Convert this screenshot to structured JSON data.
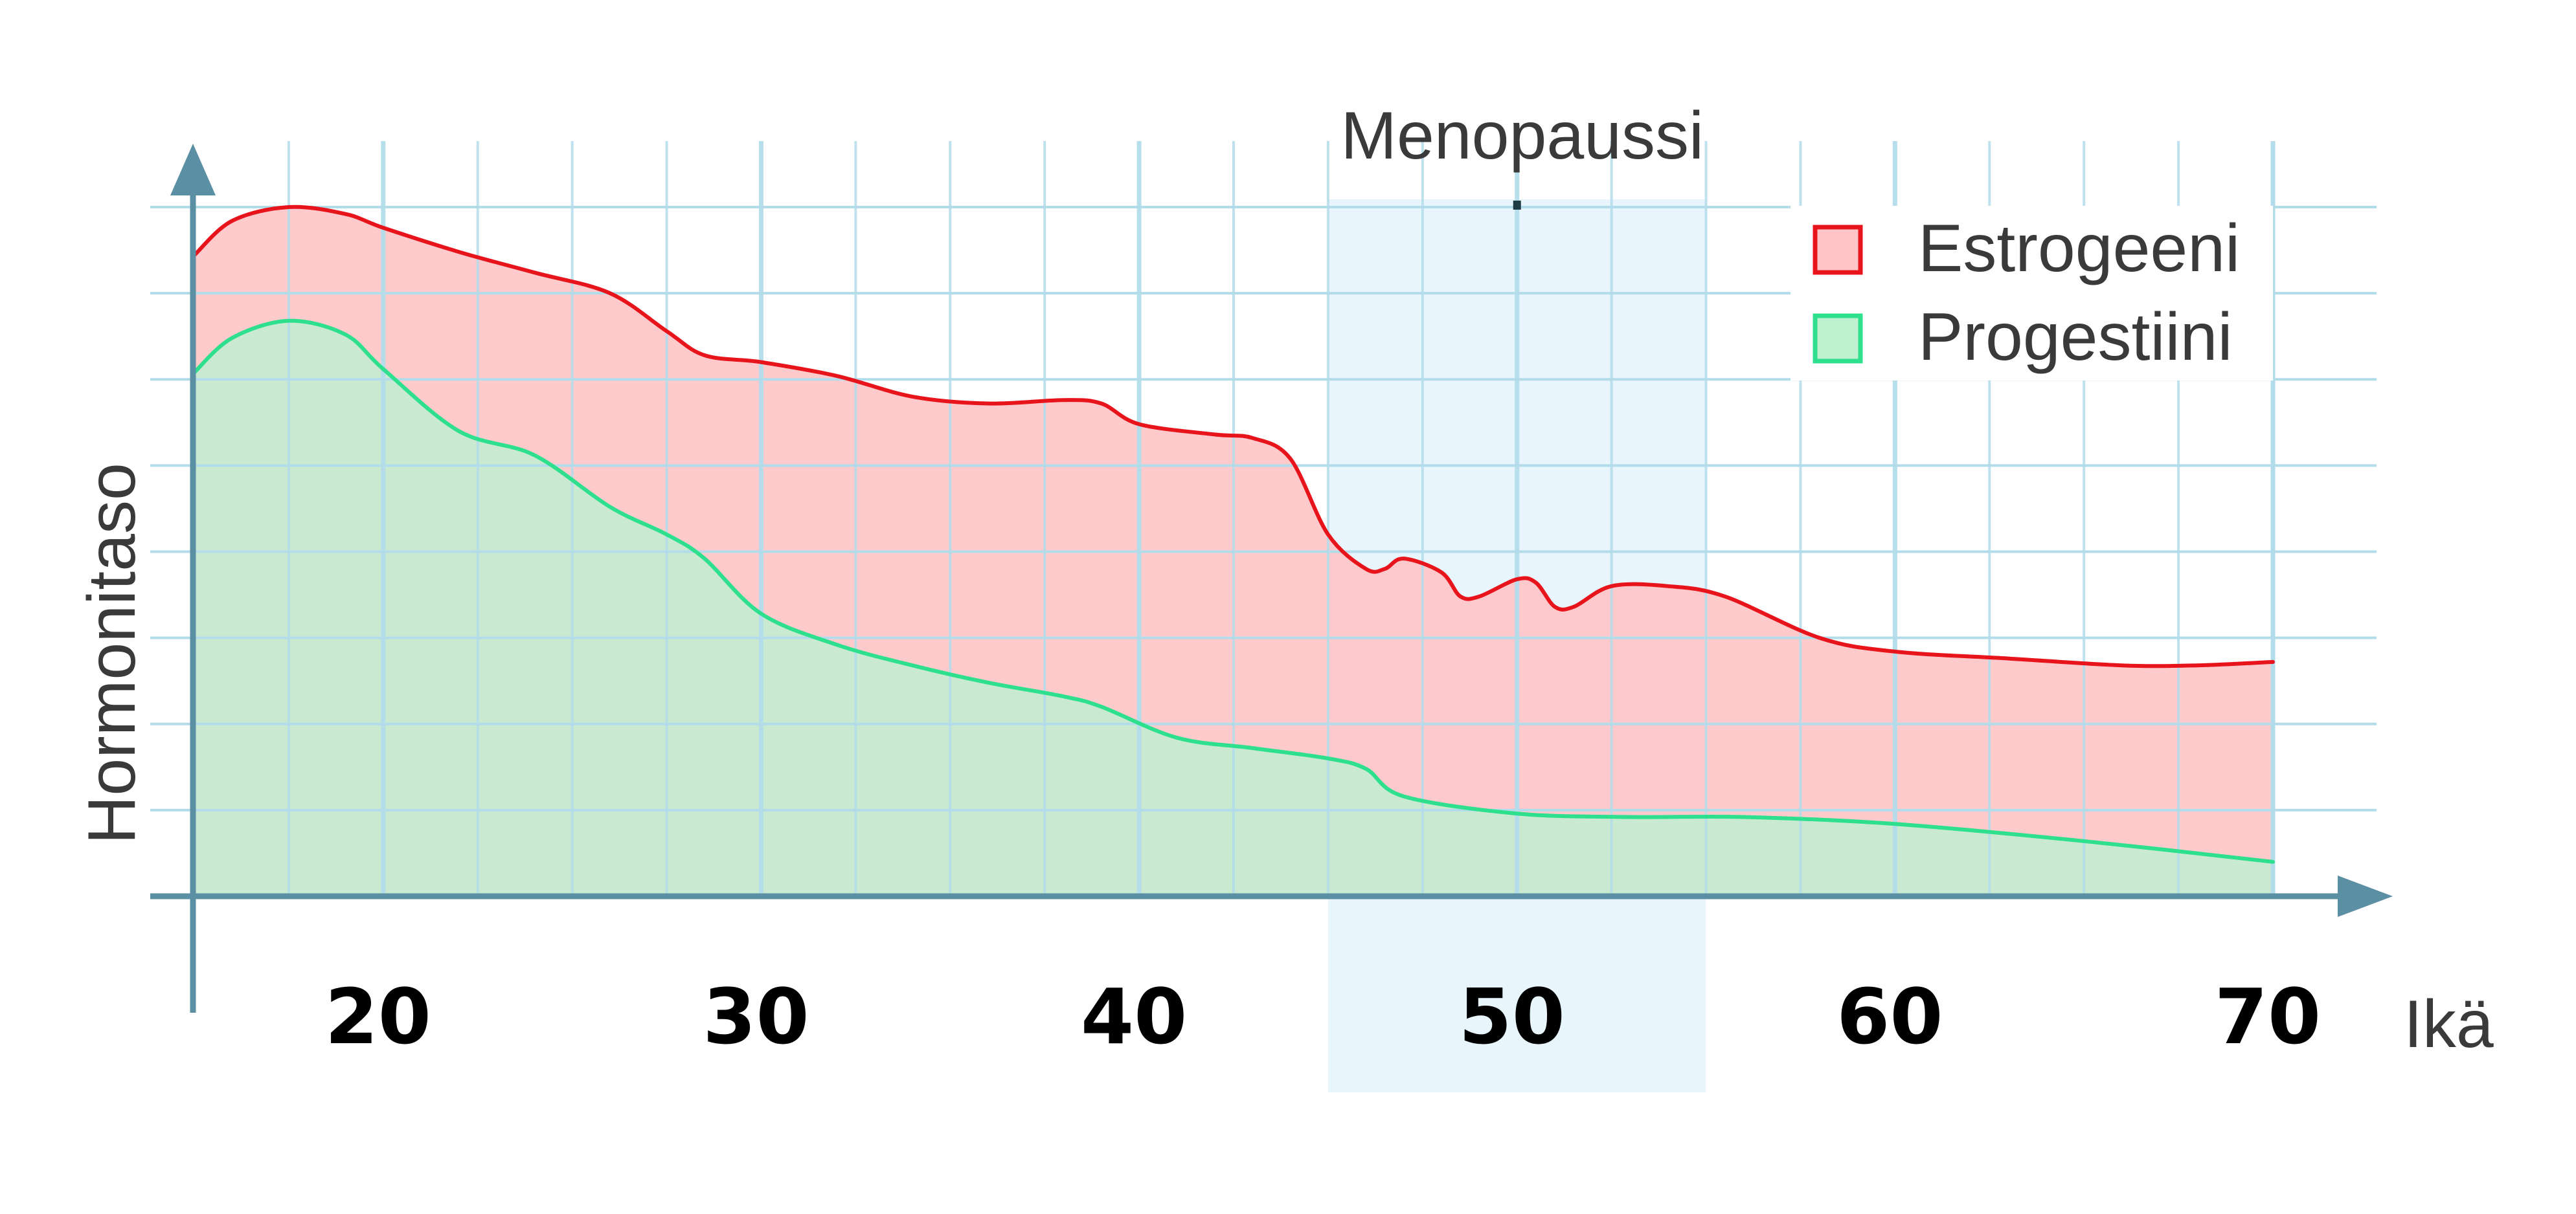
{
  "chart_data": {
    "type": "area",
    "title": "",
    "xlabel": "Ikä",
    "ylabel": "Hormonitaso",
    "xlim": [
      15,
      70
    ],
    "ylim": [
      0,
      100
    ],
    "x_ticks": [
      20,
      30,
      40,
      50,
      60,
      70
    ],
    "grid": true,
    "legend_position": "top-right",
    "annotations": [
      {
        "label": "Menopaussi",
        "x_start": 45,
        "x_end": 55,
        "marker_x": 50
      }
    ],
    "series": [
      {
        "name": "Estrogeeni",
        "color": "#e8141b",
        "fill": "#ffc4c6",
        "points": [
          [
            15,
            93
          ],
          [
            16,
            98
          ],
          [
            17.5,
            100
          ],
          [
            19,
            99
          ],
          [
            20,
            97
          ],
          [
            22,
            93.5
          ],
          [
            24,
            90.5
          ],
          [
            26,
            87.5
          ],
          [
            27.5,
            82
          ],
          [
            28.5,
            78.5
          ],
          [
            30,
            77.5
          ],
          [
            32,
            75.5
          ],
          [
            34,
            72.5
          ],
          [
            36,
            71.5
          ],
          [
            38,
            72
          ],
          [
            39,
            71.5
          ],
          [
            40,
            68.5
          ],
          [
            42,
            67
          ],
          [
            43,
            66.5
          ],
          [
            44,
            63.5
          ],
          [
            45,
            52.5
          ],
          [
            46,
            47.5
          ],
          [
            46.5,
            47.5
          ],
          [
            47,
            49
          ],
          [
            48,
            47
          ],
          [
            48.5,
            43.5
          ],
          [
            49,
            43.5
          ],
          [
            50,
            46
          ],
          [
            50.5,
            45.5
          ],
          [
            51,
            42
          ],
          [
            51.5,
            42
          ],
          [
            52.5,
            45
          ],
          [
            54,
            45
          ],
          [
            55.5,
            43.5
          ],
          [
            58,
            37.5
          ],
          [
            60,
            35.5
          ],
          [
            63,
            34.5
          ],
          [
            66,
            33.5
          ],
          [
            68,
            33.5
          ],
          [
            70,
            34
          ]
        ]
      },
      {
        "name": "Progestiini",
        "color": "#2ee08e",
        "fill": "#bff0d0",
        "points": [
          [
            15,
            76
          ],
          [
            16,
            81
          ],
          [
            17.5,
            83.5
          ],
          [
            19,
            81.5
          ],
          [
            20,
            76.5
          ],
          [
            22,
            67.5
          ],
          [
            24,
            64
          ],
          [
            26,
            56.5
          ],
          [
            27.5,
            52.5
          ],
          [
            28.5,
            49
          ],
          [
            30,
            41
          ],
          [
            32,
            36.5
          ],
          [
            34,
            33.5
          ],
          [
            36,
            31
          ],
          [
            38,
            29
          ],
          [
            39,
            27.5
          ],
          [
            41,
            23
          ],
          [
            43,
            21.5
          ],
          [
            45,
            20
          ],
          [
            46,
            18.5
          ],
          [
            47,
            14.5
          ],
          [
            50,
            12
          ],
          [
            53,
            11.5
          ],
          [
            56,
            11.5
          ],
          [
            60,
            10.5
          ],
          [
            65,
            8
          ],
          [
            70,
            5
          ]
        ]
      }
    ]
  }
}
